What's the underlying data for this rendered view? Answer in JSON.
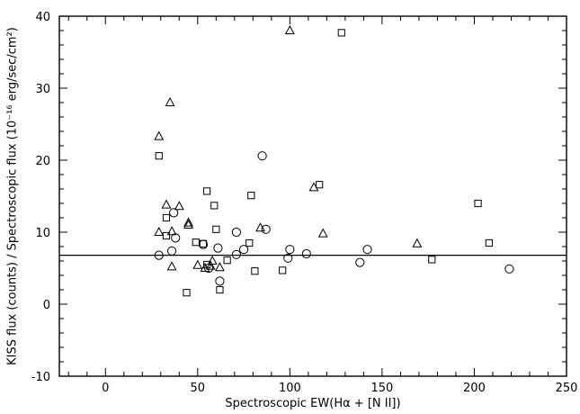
{
  "chart_data": {
    "type": "scatter",
    "title": "",
    "xlabel": "Spectroscopic EW(Hα + [N II])",
    "ylabel": "KISS flux (counts) / Spectroscopic flux (10⁻¹⁶ erg/sec/cm²)",
    "xlim": [
      -25,
      250
    ],
    "ylim": [
      -10,
      40
    ],
    "grid": false,
    "legend": "none",
    "x_ticks": [
      0,
      50,
      100,
      150,
      200,
      250
    ],
    "y_ticks": [
      -10,
      0,
      10,
      20,
      30,
      40
    ],
    "x_tick_labels": [
      "0",
      "50",
      "100",
      "150",
      "200",
      "250"
    ],
    "y_tick_labels": [
      "-10",
      "0",
      "10",
      "20",
      "30",
      "40"
    ],
    "reference_line": {
      "y": 6.8,
      "x_range": [
        -25,
        250
      ]
    },
    "series": [
      {
        "marker": "triangle",
        "points": [
          [
            29,
            23.3
          ],
          [
            35,
            28.0
          ],
          [
            100,
            38.0
          ],
          [
            29,
            10.0
          ],
          [
            33,
            13.8
          ],
          [
            36,
            10.1
          ],
          [
            40,
            13.6
          ],
          [
            45,
            11.3
          ],
          [
            45,
            11.0
          ],
          [
            36,
            5.2
          ],
          [
            50,
            5.4
          ],
          [
            54,
            5.0
          ],
          [
            57,
            5.3
          ],
          [
            58,
            6.0
          ],
          [
            62,
            5.1
          ],
          [
            84,
            10.6
          ],
          [
            113,
            16.2
          ],
          [
            118,
            9.8
          ],
          [
            169,
            8.4
          ]
        ]
      },
      {
        "marker": "square",
        "points": [
          [
            128,
            37.7
          ],
          [
            29,
            20.6
          ],
          [
            33,
            12.0
          ],
          [
            33,
            9.5
          ],
          [
            55,
            15.7
          ],
          [
            59,
            13.7
          ],
          [
            79,
            15.1
          ],
          [
            116,
            16.6
          ],
          [
            202,
            14.0
          ],
          [
            208,
            8.5
          ],
          [
            49,
            8.6
          ],
          [
            53,
            8.4
          ],
          [
            60,
            10.4
          ],
          [
            78,
            8.5
          ],
          [
            44,
            1.6
          ],
          [
            62,
            2.0
          ],
          [
            66,
            6.1
          ],
          [
            81,
            4.6
          ],
          [
            96,
            4.7
          ],
          [
            177,
            6.2
          ],
          [
            55,
            5.5
          ]
        ]
      },
      {
        "marker": "circle",
        "points": [
          [
            29,
            6.8
          ],
          [
            36,
            7.4
          ],
          [
            38,
            9.2
          ],
          [
            37,
            12.7
          ],
          [
            53,
            8.3
          ],
          [
            85,
            20.6
          ],
          [
            71,
            10.0
          ],
          [
            87,
            10.4
          ],
          [
            61,
            7.8
          ],
          [
            71,
            6.9
          ],
          [
            75,
            7.6
          ],
          [
            100,
            7.6
          ],
          [
            99,
            6.4
          ],
          [
            109,
            7.0
          ],
          [
            138,
            5.8
          ],
          [
            142,
            7.6
          ],
          [
            219,
            4.9
          ],
          [
            62,
            3.2
          ],
          [
            56,
            5.0
          ]
        ]
      }
    ]
  }
}
